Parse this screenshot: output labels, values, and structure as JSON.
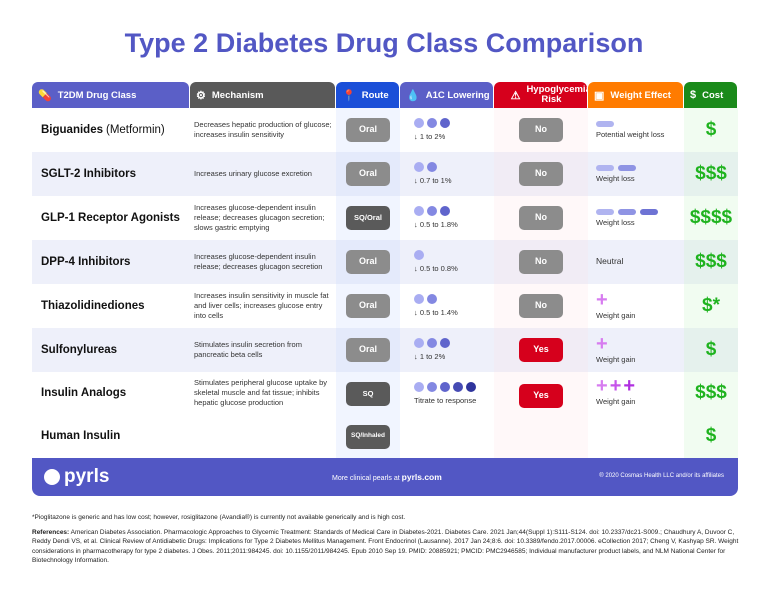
{
  "title": "Type 2 Diabetes Drug Class Comparison",
  "headers": [
    {
      "label": "T2DM Drug Class",
      "icon": "pills-icon",
      "color": "#5b5fc7"
    },
    {
      "label": "Mechanism",
      "icon": "gears-icon",
      "color": "#595959"
    },
    {
      "label": "Route",
      "icon": "location-pin-icon",
      "color": "#1b4fd8"
    },
    {
      "label": "A1C Lowering",
      "icon": "drop-icon",
      "color": "#5b5fc7"
    },
    {
      "label": "Hypoglycemia Risk",
      "icon": "warning-icon",
      "color": "#d6001c"
    },
    {
      "label": "Weight Effect",
      "icon": "scale-icon",
      "color": "#ff7b00"
    },
    {
      "label": "Cost",
      "icon": "dollar-icon",
      "color": "#1a8a1a"
    }
  ],
  "rows": [
    {
      "name": "Biguanides",
      "sub": "(Metformin)",
      "mechanism": "Decreases hepatic production of glucose; increases insulin sensitivity",
      "route": "Oral",
      "a1c_level": 3,
      "a1c": "↓ 1 to 2%",
      "hypo": "No",
      "weight_type": "bar",
      "weight_level": 1,
      "weight": "Potential weight loss",
      "cost": "$"
    },
    {
      "name": "SGLT-2 Inhibitors",
      "sub": "",
      "mechanism": "Increases urinary glucose excretion",
      "route": "Oral",
      "a1c_level": 2,
      "a1c": "↓ 0.7 to 1%",
      "hypo": "No",
      "weight_type": "bar",
      "weight_level": 2,
      "weight": "Weight loss",
      "cost": "$$$"
    },
    {
      "name": "GLP-1 Receptor Agonists",
      "sub": "",
      "mechanism": "Increases glucose-dependent insulin release; decreases glucagon secretion; slows gastric emptying",
      "route": "SQ/Oral",
      "a1c_level": 3,
      "a1c": "↓ 0.5 to 1.8%",
      "hypo": "No",
      "weight_type": "bar",
      "weight_level": 3,
      "weight": "Weight loss",
      "cost": "$$$$"
    },
    {
      "name": "DPP-4 Inhibitors",
      "sub": "",
      "mechanism": "Increases glucose-dependent insulin release; decreases glucagon secretion",
      "route": "Oral",
      "a1c_level": 1,
      "a1c": "↓ 0.5 to 0.8%",
      "hypo": "No",
      "weight_type": "none",
      "weight_level": 0,
      "weight": "Neutral",
      "cost": "$$$"
    },
    {
      "name": "Thiazolidinediones",
      "sub": "",
      "mechanism": "Increases insulin sensitivity in muscle fat and liver cells; increases glucose entry into cells",
      "route": "Oral",
      "a1c_level": 2,
      "a1c": "↓ 0.5 to 1.4%",
      "hypo": "No",
      "weight_type": "plus",
      "weight_level": 1,
      "weight": "Weight gain",
      "cost": "$*"
    },
    {
      "name": "Sulfonylureas",
      "sub": "",
      "mechanism": "Stimulates insulin secretion from pancreatic beta cells",
      "route": "Oral",
      "a1c_level": 3,
      "a1c": "↓ 1 to 2%",
      "hypo": "Yes",
      "weight_type": "plus",
      "weight_level": 1,
      "weight": "Weight gain",
      "cost": "$"
    }
  ],
  "insulin": {
    "name": "Insulin Analogs",
    "name2": "Human Insulin",
    "mechanism": "Stimulates peripheral glucose uptake by skeletal muscle and fat tissue; inhibits hepatic glucose production",
    "route": "SQ",
    "route2": "SQ/Inhaled",
    "a1c_level": 5,
    "a1c": "Titrate to response",
    "hypo": "Yes",
    "weight_level": 3,
    "weight": "Weight gain",
    "cost": "$$$",
    "cost2": "$"
  },
  "colors": {
    "dots": [
      "#a9adf2",
      "#8388e2",
      "#5f64cc",
      "#464bb4",
      "#2f349c"
    ],
    "bars": [
      "#b0b4f0",
      "#8f94e4",
      "#6e73d4"
    ],
    "plus": [
      "#d77cf0",
      "#c655ea",
      "#b02fe0"
    ]
  },
  "footer": {
    "logo": "pyrls",
    "more": "More clinical pearls at",
    "site": "pyrls.com",
    "copyright": "® 2020 Cosmas Health LLC and/or its affiliates"
  },
  "note": "*Pioglitazone is generic and has low cost; however, rosiglitazone (Avandia®) is currently not available generically and is high cost.",
  "refs_label": "References:",
  "refs": "American Diabetes Association. Pharmacologic Approaches to Glycemic Treatment: Standards of Medical Care in Diabetes-2021. Diabetes Care. 2021 Jan;44(Suppl 1):S111-S124. doi: 10.2337/dc21-S009.; Chaudhury A, Duvoor C, Reddy Dendi VS, et al. Clinical Review of Antidiabetic Drugs: Implications for Type 2 Diabetes Mellitus Management. Front Endocrinol (Lausanne). 2017 Jan 24;8:6. doi: 10.3389/fendo.2017.00006. eCollection 2017; Cheng V, Kashyap SR. Weight considerations in pharmacotherapy for type 2 diabetes. J Obes. 2011;2011:984245. doi: 10.1155/2011/984245. Epub 2010 Sep 19. PMID: 20885921; PMCID: PMC2946585; Individual manufacturer product labels, and NLM National Center for Biotechnology Information."
}
